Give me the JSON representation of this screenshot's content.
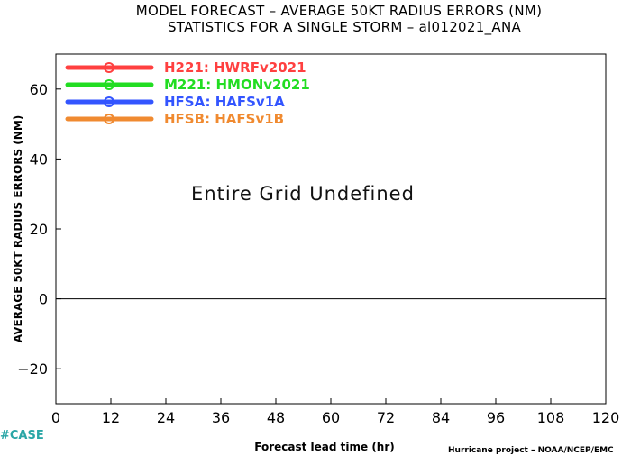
{
  "chart_data": {
    "type": "line",
    "title": "MODEL FORECAST – AVERAGE 50KT RADIUS ERRORS (NM)",
    "subtitle": "STATISTICS FOR A SINGLE STORM – al012021_ANA",
    "xlabel": "Forecast lead time (hr)",
    "ylabel": "AVERAGE 50KT RADIUS ERRORS (NM)",
    "xlim": [
      0,
      120
    ],
    "ylim": [
      -30,
      70
    ],
    "x_ticks": [
      0,
      12,
      24,
      36,
      48,
      60,
      72,
      84,
      96,
      108,
      120
    ],
    "y_ticks": [
      -20,
      0,
      20,
      40,
      60
    ],
    "y_tick_labels": [
      "−20",
      "0",
      "20",
      "40",
      "60"
    ],
    "zero_line": 0,
    "grid": false,
    "legend_position": "top-left",
    "annotation": "Entire Grid Undefined",
    "series": [
      {
        "name": "H221: HWRFv2021",
        "color": "#ff4040",
        "values": []
      },
      {
        "name": "M221: HMONv2021",
        "color": "#22dd22",
        "values": []
      },
      {
        "name": "HFSA: HAFSv1A",
        "color": "#3355ff",
        "values": []
      },
      {
        "name": "HFSB: HAFSv1B",
        "color": "#f08a30",
        "values": []
      }
    ]
  },
  "footer": {
    "tag": "#CASE",
    "credit": "Hurricane project – NOAA/NCEP/EMC"
  }
}
